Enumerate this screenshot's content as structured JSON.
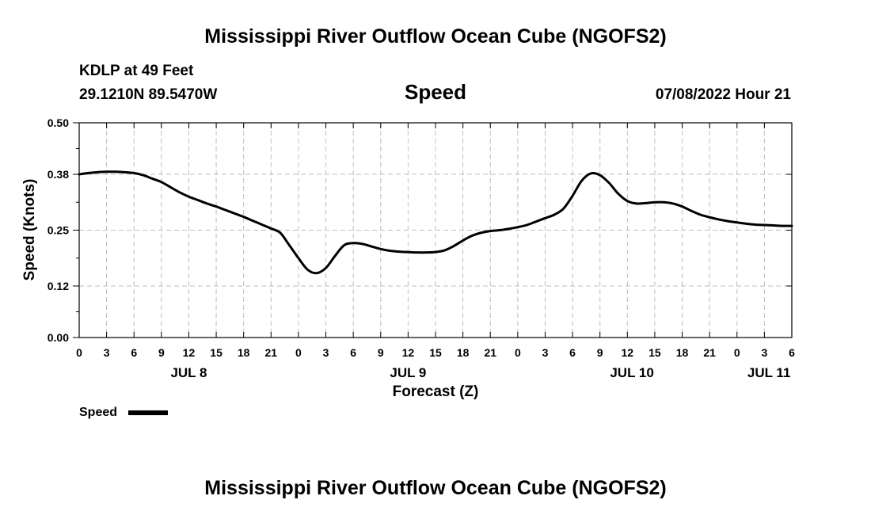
{
  "header": {
    "title": "Mississippi River Outflow Ocean Cube (NGOFS2)",
    "station": "KDLP at 49 Feet",
    "coords": "29.1210N  89.5470W",
    "subtitle": "Speed",
    "datetime": "07/08/2022 Hour 21"
  },
  "footer": {
    "title": "Mississippi River Outflow Ocean Cube (NGOFS2)"
  },
  "legend": {
    "label": "Speed",
    "color": "#000000"
  },
  "chart_data": {
    "type": "line",
    "title": "Speed",
    "xlabel": "Forecast (Z)",
    "ylabel": "Speed (Knots)",
    "xlim": [
      0,
      78
    ],
    "ylim": [
      0,
      0.5
    ],
    "grid": true,
    "y_ticks": [
      0.0,
      0.12,
      0.25,
      0.38,
      0.5
    ],
    "y_tick_labels": [
      "0.00",
      "0.12",
      "0.25",
      "0.38",
      "0.50"
    ],
    "x_ticks": [
      0,
      3,
      6,
      9,
      12,
      15,
      18,
      21,
      24,
      27,
      30,
      33,
      36,
      39,
      42,
      45,
      48,
      51,
      54,
      57,
      60,
      63,
      66,
      69,
      72,
      75,
      78
    ],
    "x_tick_labels": [
      "0",
      "3",
      "6",
      "9",
      "12",
      "15",
      "18",
      "21",
      "0",
      "3",
      "6",
      "9",
      "12",
      "15",
      "18",
      "21",
      "0",
      "3",
      "6",
      "9",
      "12",
      "15",
      "18",
      "21",
      "0",
      "3",
      "6"
    ],
    "day_labels": [
      {
        "label": "JUL 8",
        "at": 12
      },
      {
        "label": "JUL 9",
        "at": 36
      },
      {
        "label": "JUL 10",
        "at": 60.5
      },
      {
        "label": "JUL 11",
        "at": 75.5
      }
    ],
    "legend_position": "bottom-left",
    "series": [
      {
        "name": "Speed",
        "color": "#000000",
        "x": [
          0,
          1,
          2,
          3,
          4,
          5,
          6,
          7,
          8,
          9,
          10,
          11,
          12,
          13,
          14,
          15,
          16,
          17,
          18,
          19,
          20,
          21,
          22,
          23,
          24,
          25,
          26,
          27,
          28,
          29,
          30,
          31,
          32,
          33,
          34,
          35,
          36,
          37,
          38,
          39,
          40,
          41,
          42,
          43,
          44,
          45,
          46,
          47,
          48,
          49,
          50,
          51,
          52,
          53,
          54,
          55,
          56,
          57,
          58,
          59,
          60,
          61,
          62,
          63,
          64,
          65,
          66,
          67,
          68,
          69,
          70,
          71,
          72,
          73,
          74,
          75,
          76,
          77,
          78
        ],
        "values": [
          0.38,
          0.383,
          0.385,
          0.386,
          0.386,
          0.385,
          0.383,
          0.378,
          0.37,
          0.362,
          0.35,
          0.338,
          0.328,
          0.32,
          0.312,
          0.305,
          0.297,
          0.289,
          0.281,
          0.272,
          0.263,
          0.254,
          0.244,
          0.215,
          0.185,
          0.158,
          0.15,
          0.162,
          0.19,
          0.215,
          0.22,
          0.218,
          0.212,
          0.206,
          0.202,
          0.2,
          0.199,
          0.198,
          0.198,
          0.199,
          0.203,
          0.213,
          0.226,
          0.237,
          0.244,
          0.248,
          0.25,
          0.253,
          0.257,
          0.262,
          0.27,
          0.278,
          0.286,
          0.3,
          0.33,
          0.365,
          0.382,
          0.378,
          0.36,
          0.335,
          0.318,
          0.312,
          0.313,
          0.315,
          0.315,
          0.312,
          0.305,
          0.295,
          0.286,
          0.28,
          0.275,
          0.271,
          0.268,
          0.265,
          0.263,
          0.262,
          0.261,
          0.26,
          0.26
        ]
      }
    ]
  }
}
